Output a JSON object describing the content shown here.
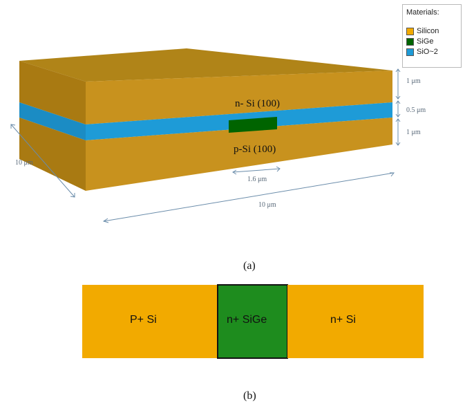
{
  "legend": {
    "title": "Materials:",
    "items": [
      {
        "label": "Silicon",
        "color": "#F2AA00"
      },
      {
        "label": "SiGe",
        "color": "#006400"
      },
      {
        "label": "SiO~2",
        "color": "#1E9BD7"
      }
    ]
  },
  "panel_a": {
    "top_label": "n- Si (100)",
    "bottom_label": "p-Si (100)",
    "dim_top": "1 μm",
    "dim_middle": "0.5 μm",
    "dim_bottom": "1 μm",
    "dim_depth": "10 μm",
    "dim_width": "10 μm",
    "dim_sige": "1.6 μm",
    "caption": "(a)"
  },
  "panel_b": {
    "left_label": "P+ Si",
    "middle_label": "n+ SiGe",
    "right_label": "n+ Si",
    "caption": "(b)"
  },
  "colors": {
    "silicon_top": "#B8860B",
    "silicon_front": "#C8921E",
    "silicon_side": "#A97A12",
    "oxide": "#1E9BD7",
    "sige": "#006400",
    "panel_b_silicon": "#F2AA00",
    "panel_b_sige": "#1E8C1E",
    "annotation": "#6A8CAA"
  }
}
